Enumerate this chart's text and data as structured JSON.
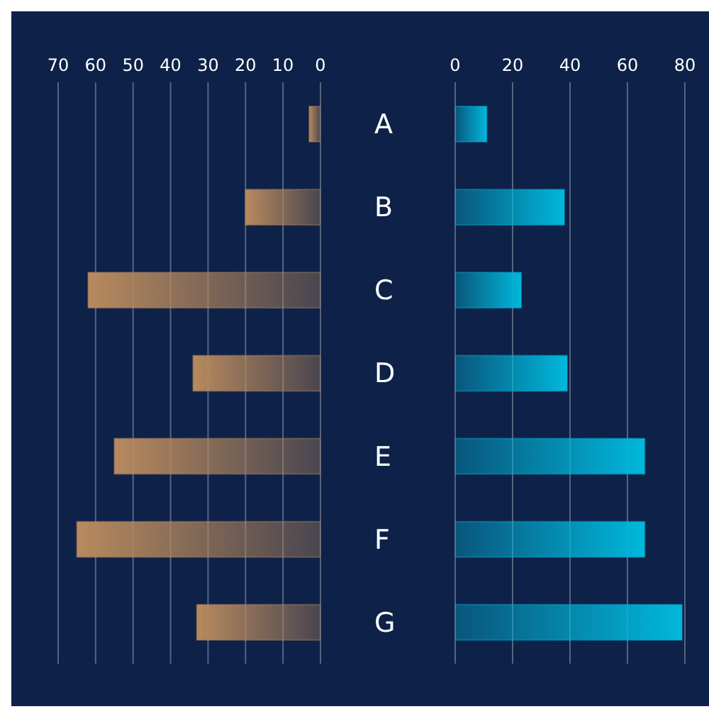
{
  "chart_data": [
    {
      "type": "bar",
      "orientation": "horizontal",
      "categories": [
        "A",
        "B",
        "C",
        "D",
        "E",
        "F",
        "G"
      ],
      "values": [
        3,
        20,
        62,
        34,
        55,
        65,
        33
      ],
      "color": "#b88a5e",
      "xlim": [
        70,
        0
      ],
      "xticks": [
        70,
        60,
        50,
        40,
        30,
        20,
        10,
        0
      ],
      "grid": "x"
    },
    {
      "type": "bar",
      "orientation": "horizontal",
      "categories": [
        null,
        null,
        null,
        null,
        null,
        null,
        null
      ],
      "values": [
        11,
        38,
        23,
        39,
        66,
        66,
        79
      ],
      "color": "#00b8dc",
      "xlim": [
        0,
        80
      ],
      "xticks": [
        0,
        20,
        40,
        60,
        80
      ],
      "grid": "x",
      "tick_labels": "x"
    }
  ]
}
